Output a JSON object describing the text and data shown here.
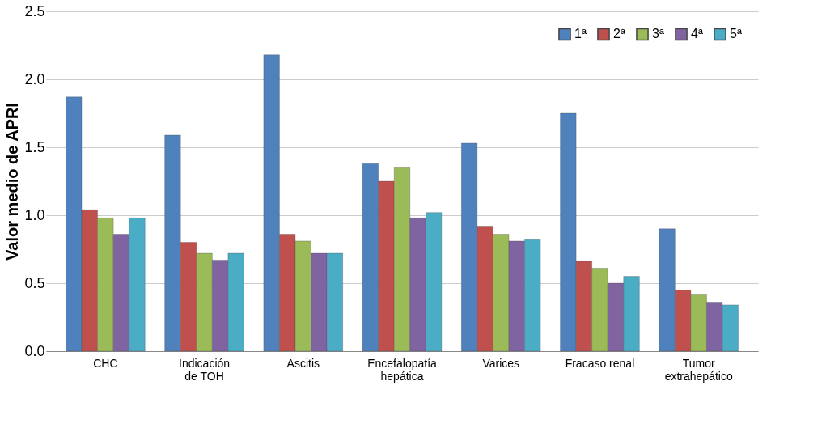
{
  "chart_data": {
    "type": "bar",
    "ylabel": "Valor medio de APRI",
    "categories": [
      "CHC",
      "Indicación\nde TOH",
      "Ascitis",
      "Encefalopatía\nhepática",
      "Varices",
      "Fracaso renal",
      "Tumor\nextrahepático"
    ],
    "series": [
      {
        "name": "1ª",
        "color": "#4f81bd",
        "values": [
          1.87,
          1.59,
          2.18,
          1.38,
          1.53,
          1.75,
          0.9
        ]
      },
      {
        "name": "2ª",
        "color": "#c0504d",
        "values": [
          1.04,
          0.8,
          0.86,
          1.25,
          0.92,
          0.66,
          0.45
        ]
      },
      {
        "name": "3ª",
        "color": "#9bbb59",
        "values": [
          0.98,
          0.72,
          0.81,
          1.35,
          0.86,
          0.61,
          0.42
        ]
      },
      {
        "name": "4ª",
        "color": "#8064a2",
        "values": [
          0.86,
          0.67,
          0.72,
          0.98,
          0.81,
          0.5,
          0.36
        ]
      },
      {
        "name": "5ª",
        "color": "#4bacc6",
        "values": [
          0.98,
          0.72,
          0.72,
          1.02,
          0.82,
          0.55,
          0.34
        ]
      }
    ],
    "ylim": [
      0,
      2.5
    ],
    "yticks": [
      {
        "value": 0,
        "label": "0.0"
      },
      {
        "value": 0.5,
        "label": "0.5"
      },
      {
        "value": 1,
        "label": "1.0"
      },
      {
        "value": 1.5,
        "label": "1.5"
      },
      {
        "value": 2,
        "label": "2.0"
      },
      {
        "value": 2.5,
        "label": "2.5"
      }
    ],
    "grid": "y",
    "legend": "top right"
  }
}
